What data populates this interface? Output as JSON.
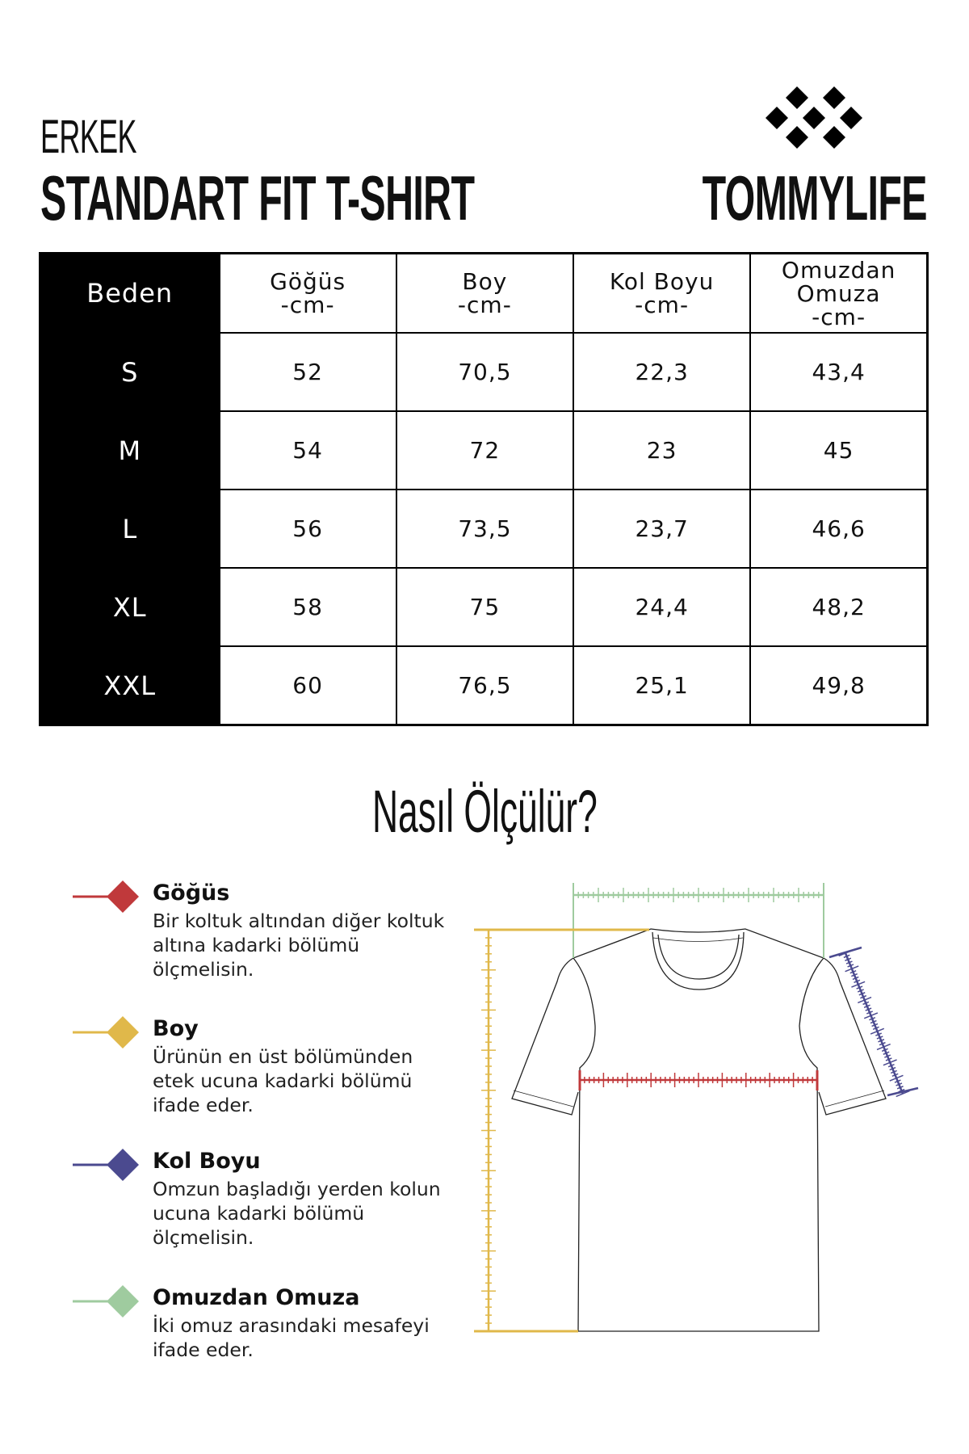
{
  "header": {
    "subtitle": "ERKEK",
    "title": "STANDART FIT T-SHIRT",
    "brand": "TOMMYLIFE",
    "logo_icon": "diamond-cluster-logo"
  },
  "table": {
    "columns": [
      {
        "line1": "Beden",
        "line2": "",
        "line3": ""
      },
      {
        "line1": "Göğüs",
        "line2": "-cm-",
        "line3": ""
      },
      {
        "line1": "Boy",
        "line2": "-cm-",
        "line3": ""
      },
      {
        "line1": "Kol Boyu",
        "line2": "-cm-",
        "line3": ""
      },
      {
        "line1": "Omuzdan",
        "line2": "Omuza",
        "line3": "-cm-"
      }
    ],
    "rows": [
      [
        "S",
        "52",
        "70,5",
        "22,3",
        "43,4"
      ],
      [
        "M",
        "54",
        "72",
        "23",
        "45"
      ],
      [
        "L",
        "56",
        "73,5",
        "23,7",
        "46,6"
      ],
      [
        "XL",
        "58",
        "75",
        "24,4",
        "48,2"
      ],
      [
        "XXL",
        "60",
        "76,5",
        "25,1",
        "49,8"
      ]
    ]
  },
  "guide": {
    "title": "Nasıl Ölçülür?",
    "items": [
      {
        "title": "Göğüs",
        "text": "Bir koltuk altından diğer koltuk altına kadarki bölümü ölçmelisin.",
        "color": "#c0393b"
      },
      {
        "title": "Boy",
        "text": "Ürünün en üst bölümünden etek ucuna kadarki bölümü ifade eder.",
        "color": "#e0b84a"
      },
      {
        "title": "Kol Boyu",
        "text": "Omzun başladığı yerden kolun ucuna kadarki bölümü ölçmelisin.",
        "color": "#4b4a8f"
      },
      {
        "title": "Omuzdan Omuza",
        "text": "İki omuz arasındaki mesafeyi ifade eder.",
        "color": "#9fcb9f"
      }
    ]
  }
}
